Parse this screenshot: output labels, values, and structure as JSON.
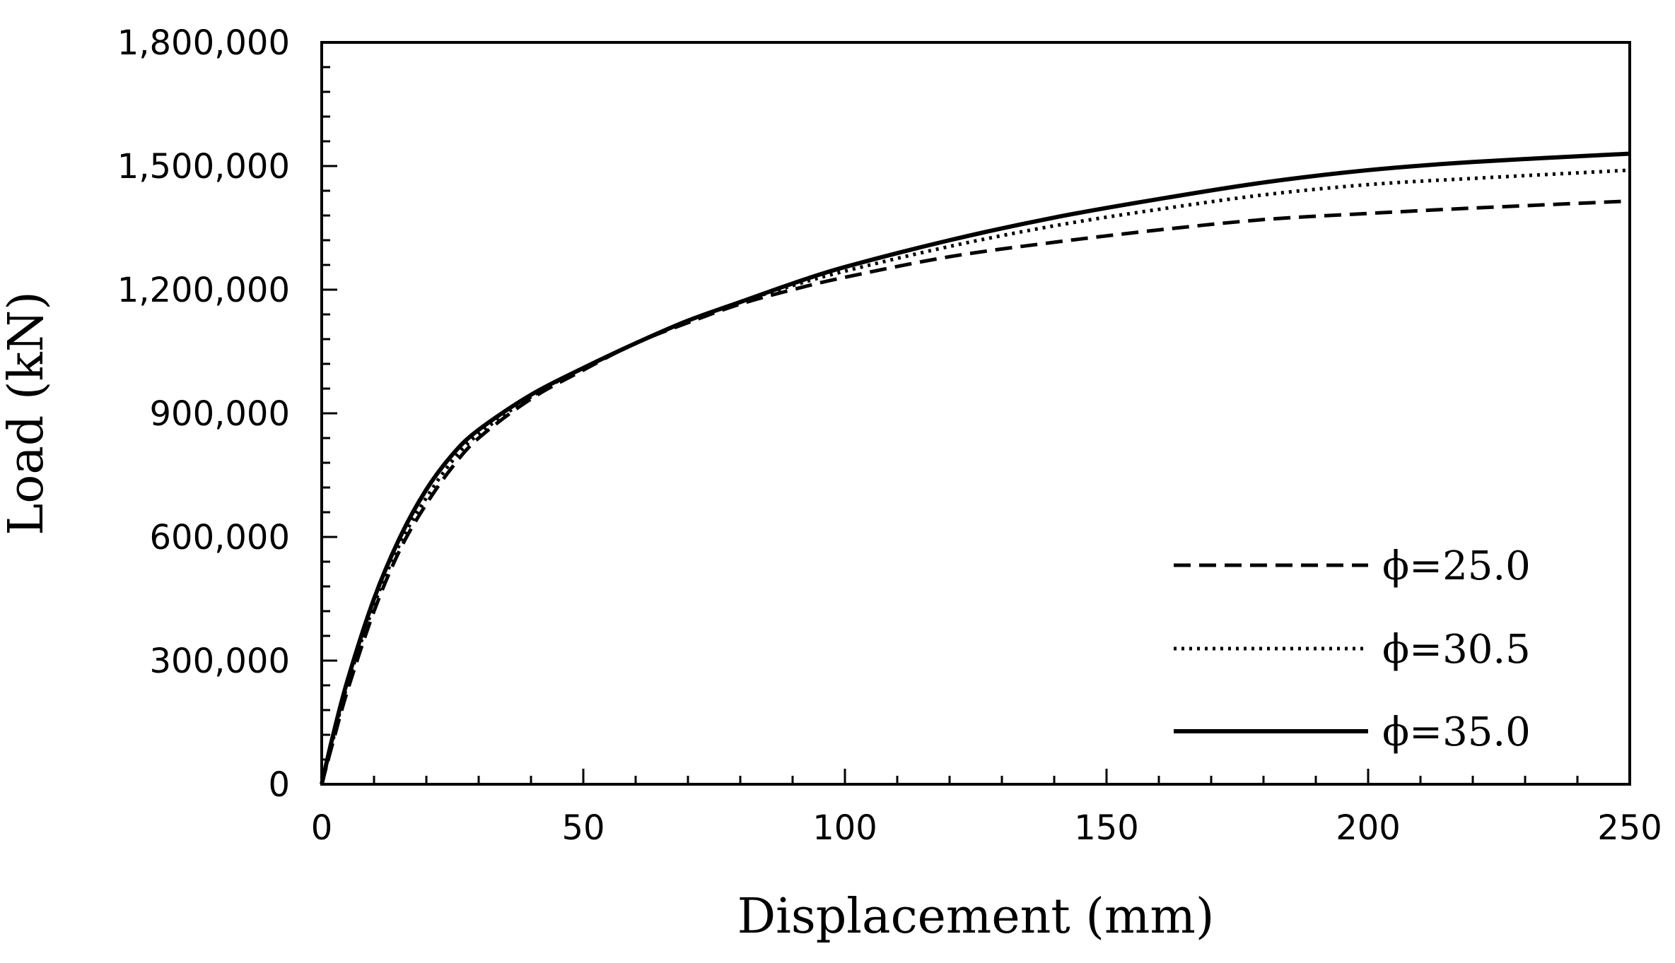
{
  "chart_data": {
    "type": "line",
    "title": "",
    "xlabel": "Displacement (mm)",
    "ylabel": "Load (kN)",
    "xlim": [
      0,
      250
    ],
    "ylim": [
      0,
      1800000
    ],
    "x_ticks": [
      0,
      50,
      100,
      150,
      200,
      250
    ],
    "x_tick_labels": [
      "0",
      "50",
      "100",
      "150",
      "200",
      "250"
    ],
    "y_ticks": [
      0,
      300000,
      600000,
      900000,
      1200000,
      1500000,
      1800000
    ],
    "y_tick_labels": [
      "0",
      "300,000",
      "600,000",
      "900,000",
      "1,200,000",
      "1,500,000",
      "1,800,000"
    ],
    "x_minor_step": 10,
    "y_minor_step": 60000,
    "grid": false,
    "legend_position": "bottom-right",
    "series": [
      {
        "name": "ϕ=25.0",
        "line_style": "dashed",
        "color": "#000000",
        "x": [
          0,
          2,
          5,
          10,
          15,
          20,
          25,
          30,
          40,
          50,
          60,
          70,
          80,
          90,
          100,
          120,
          140,
          160,
          180,
          200,
          220,
          250
        ],
        "y": [
          0,
          95000,
          230000,
          420000,
          570000,
          680000,
          770000,
          840000,
          935000,
          1005000,
          1070000,
          1120000,
          1165000,
          1200000,
          1230000,
          1280000,
          1315000,
          1345000,
          1370000,
          1385000,
          1398000,
          1415000
        ]
      },
      {
        "name": "ϕ=30.5",
        "line_style": "dotted",
        "color": "#000000",
        "x": [
          0,
          2,
          5,
          10,
          15,
          20,
          25,
          30,
          40,
          50,
          60,
          70,
          80,
          90,
          100,
          120,
          140,
          160,
          180,
          200,
          220,
          250
        ],
        "y": [
          0,
          100000,
          245000,
          435000,
          585000,
          695000,
          785000,
          850000,
          940000,
          1010000,
          1070000,
          1125000,
          1170000,
          1210000,
          1245000,
          1305000,
          1355000,
          1395000,
          1430000,
          1455000,
          1470000,
          1490000
        ]
      },
      {
        "name": "ϕ=35.0",
        "line_style": "solid",
        "color": "#000000",
        "x": [
          0,
          2,
          5,
          10,
          15,
          20,
          25,
          30,
          40,
          50,
          60,
          70,
          80,
          90,
          100,
          120,
          140,
          160,
          180,
          200,
          220,
          250
        ],
        "y": [
          0,
          110000,
          255000,
          450000,
          600000,
          715000,
          800000,
          860000,
          945000,
          1010000,
          1070000,
          1125000,
          1170000,
          1215000,
          1255000,
          1320000,
          1375000,
          1420000,
          1460000,
          1490000,
          1510000,
          1530000
        ]
      }
    ]
  }
}
